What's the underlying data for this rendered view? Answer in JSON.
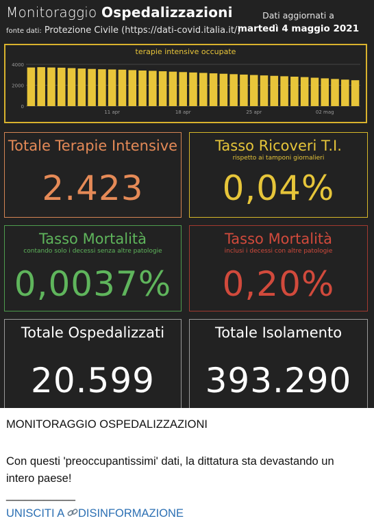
{
  "header": {
    "title_light": "Monitoraggio",
    "title_bold": "Ospedalizzazioni",
    "source_label": "fonte dati:",
    "source_text": "Protezione Civile (https://dati-covid.italia.it/)",
    "updated_label": "Dati aggiornati a",
    "updated_date": "martedì 4 maggio 2021"
  },
  "chart_data": {
    "type": "bar",
    "title": "terapie intensive occupate",
    "bar_color": "#e8c53a",
    "ylim": [
      0,
      4000
    ],
    "y_ticks": [
      0,
      2000,
      4000
    ],
    "y_tick_labels": [
      "0",
      "2000",
      "4000"
    ],
    "x_tick_labels": [
      "11 apr",
      "18 apr",
      "25 apr",
      "02 mag"
    ],
    "x_tick_positions": [
      8,
      15,
      22,
      29
    ],
    "values": [
      3700,
      3730,
      3700,
      3680,
      3640,
      3600,
      3560,
      3530,
      3510,
      3490,
      3450,
      3410,
      3380,
      3340,
      3300,
      3260,
      3220,
      3180,
      3140,
      3100,
      3060,
      3020,
      2980,
      2940,
      2900,
      2860,
      2820,
      2780,
      2720,
      2660,
      2600,
      2540,
      2480
    ]
  },
  "cards": {
    "ti": {
      "title": "Totale Terapie Intensive",
      "value": "2.423",
      "color": "#e58a57"
    },
    "ricoveri": {
      "title": "Tasso Ricoveri T.I.",
      "subtitle": "rispetto ai tamponi giornalieri",
      "value": "0,04%",
      "color": "#e6c53a"
    },
    "mort_senza": {
      "title": "Tasso Mortalità",
      "subtitle": "contando solo i decessi senza altre patologie",
      "value": "0,0037%",
      "color": "#5fb55c"
    },
    "mort_con": {
      "title": "Tasso Mortalità",
      "subtitle": "inclusi i decessi con altre patologie",
      "value": "0,20%",
      "color": "#d14a3c"
    },
    "ospedalizzati": {
      "title": "Totale Ospedalizzati",
      "value": "20.599",
      "color": "#ffffff"
    },
    "isolamento": {
      "title": "Totale Isolamento",
      "value": "393.290",
      "color": "#ffffff"
    }
  },
  "post": {
    "heading": "MONITORAGGIO OSPEDALIZZAZIONI",
    "body": "Con questi 'preoccupantissimi' dati, la dittatura sta devastando un intero paese!",
    "separator": "___________",
    "link_prefix": "UNISCITI A",
    "link_icon": "link-icon",
    "link_suffix": "DISINFORMAZIONE"
  }
}
